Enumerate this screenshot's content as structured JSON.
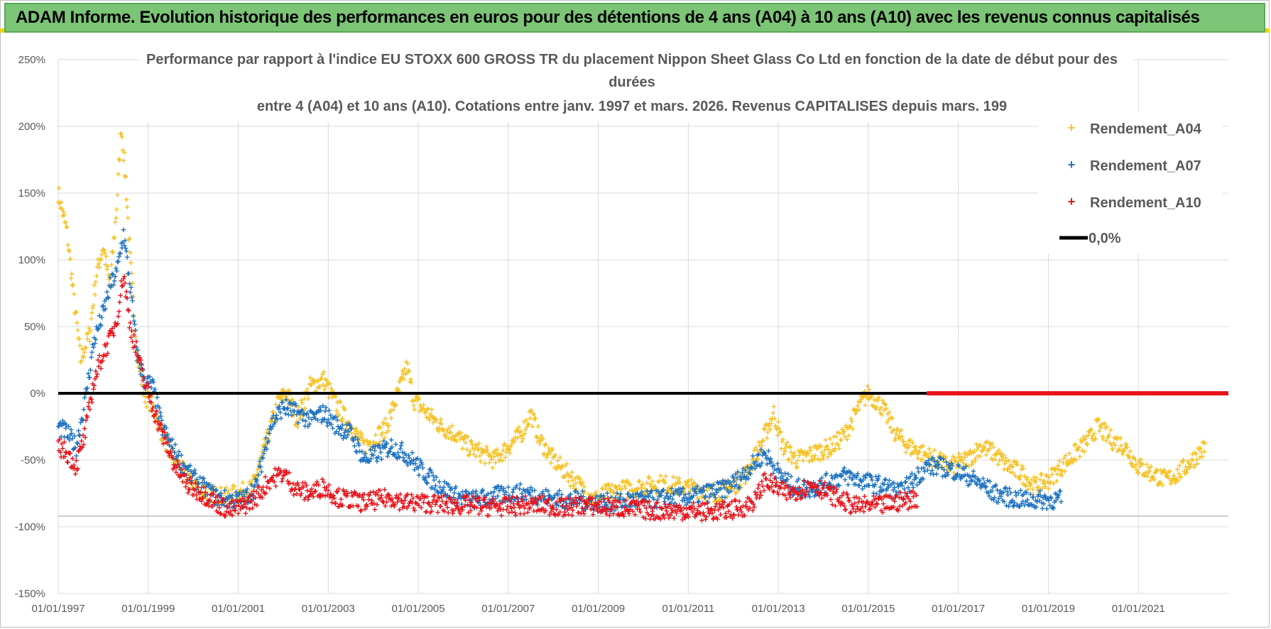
{
  "header": {
    "title": "ADAM Informe. Evolution historique des performances en euros pour des détentions de 4 ans (A04) à 10 ans (A10) avec les revenus connus capitalisés"
  },
  "colors": {
    "a04": "#f5c227",
    "a07": "#1f73c2",
    "a10": "#e8141c",
    "zero": "#000000",
    "banner": "#7cc576"
  },
  "chart_data": {
    "type": "scatter",
    "title_lines": [
      "Performance par rapport à l'indice EU STOXX 600 GROSS TR  du placement Nippon Sheet Glass Co Ltd en fonction de la date de début pour des",
      "durées",
      "entre 4 (A04) et 10 ans (A10).  Cotations entre janv. 1997 et mars. 2026.  Revenus CAPITALISES depuis mars. 199"
    ],
    "xlim": [
      1997.0,
      2023.0
    ],
    "ylim": [
      -150,
      250
    ],
    "yticks": [
      250,
      200,
      150,
      100,
      50,
      0,
      -50,
      -100,
      -150
    ],
    "ytick_labels": [
      "250%",
      "200%",
      "150%",
      "100%",
      "50%",
      "0%",
      "-50%",
      "-100%",
      "-150%"
    ],
    "xticks": [
      1997,
      1999,
      2001,
      2003,
      2005,
      2007,
      2009,
      2011,
      2013,
      2015,
      2017,
      2019,
      2021
    ],
    "xtick_labels": [
      "01/01/1997",
      "01/01/1999",
      "01/01/2001",
      "01/01/2003",
      "01/01/2005",
      "01/01/2007",
      "01/01/2009",
      "01/01/2011",
      "01/01/2013",
      "01/01/2015",
      "01/01/2017",
      "01/01/2019",
      "01/01/2021"
    ],
    "legend": [
      "Rendement_A04",
      "Rendement_A07",
      "Rendement_A10",
      "0,0%"
    ],
    "series": [
      {
        "name": "Rendement_A04",
        "color": "#f5c227",
        "points": [
          [
            1997.0,
            150
          ],
          [
            1997.2,
            120
          ],
          [
            1997.35,
            70
          ],
          [
            1997.5,
            25
          ],
          [
            1997.7,
            45
          ],
          [
            1997.85,
            90
          ],
          [
            1998.0,
            110
          ],
          [
            1998.15,
            80
          ],
          [
            1998.3,
            140
          ],
          [
            1998.4,
            200
          ],
          [
            1998.5,
            160
          ],
          [
            1998.6,
            100
          ],
          [
            1998.75,
            30
          ],
          [
            1998.9,
            0
          ],
          [
            1999.1,
            -10
          ],
          [
            1999.3,
            -30
          ],
          [
            1999.5,
            -45
          ],
          [
            1999.8,
            -60
          ],
          [
            2000.1,
            -70
          ],
          [
            2000.4,
            -75
          ],
          [
            2000.7,
            -78
          ],
          [
            2001.0,
            -75
          ],
          [
            2001.3,
            -72
          ],
          [
            2001.6,
            -40
          ],
          [
            2001.9,
            -5
          ],
          [
            2002.1,
            0
          ],
          [
            2002.3,
            -20
          ],
          [
            2002.6,
            5
          ],
          [
            2002.9,
            10
          ],
          [
            2003.2,
            -10
          ],
          [
            2003.5,
            -25
          ],
          [
            2003.8,
            -40
          ],
          [
            2004.0,
            -35
          ],
          [
            2004.3,
            -25
          ],
          [
            2004.55,
            0
          ],
          [
            2004.75,
            20
          ],
          [
            2004.9,
            -5
          ],
          [
            2005.2,
            -15
          ],
          [
            2005.5,
            -25
          ],
          [
            2005.8,
            -30
          ],
          [
            2006.1,
            -40
          ],
          [
            2006.4,
            -45
          ],
          [
            2006.7,
            -50
          ],
          [
            2007.0,
            -40
          ],
          [
            2007.3,
            -30
          ],
          [
            2007.5,
            -15
          ],
          [
            2007.7,
            -35
          ],
          [
            2008.0,
            -50
          ],
          [
            2008.3,
            -60
          ],
          [
            2008.6,
            -70
          ],
          [
            2008.9,
            -80
          ],
          [
            2009.2,
            -75
          ],
          [
            2009.6,
            -72
          ],
          [
            2010.0,
            -70
          ],
          [
            2010.4,
            -68
          ],
          [
            2010.8,
            -70
          ],
          [
            2011.2,
            -72
          ],
          [
            2011.6,
            -75
          ],
          [
            2012.0,
            -70
          ],
          [
            2012.3,
            -60
          ],
          [
            2012.6,
            -40
          ],
          [
            2012.9,
            -15
          ],
          [
            2013.1,
            -40
          ],
          [
            2013.4,
            -50
          ],
          [
            2013.8,
            -45
          ],
          [
            2014.2,
            -40
          ],
          [
            2014.5,
            -30
          ],
          [
            2014.8,
            -10
          ],
          [
            2015.0,
            0
          ],
          [
            2015.3,
            -10
          ],
          [
            2015.6,
            -30
          ],
          [
            2015.9,
            -40
          ],
          [
            2016.2,
            -45
          ],
          [
            2016.5,
            -50
          ],
          [
            2016.8,
            -55
          ],
          [
            2017.2,
            -50
          ],
          [
            2017.5,
            -40
          ],
          [
            2017.8,
            -45
          ],
          [
            2018.1,
            -55
          ],
          [
            2018.4,
            -60
          ],
          [
            2018.7,
            -70
          ],
          [
            2019.0,
            -65
          ],
          [
            2019.3,
            -55
          ],
          [
            2019.6,
            -45
          ],
          [
            2019.9,
            -35
          ],
          [
            2020.1,
            -25
          ],
          [
            2020.4,
            -35
          ],
          [
            2020.7,
            -40
          ],
          [
            2021.0,
            -55
          ],
          [
            2021.3,
            -60
          ],
          [
            2021.6,
            -65
          ],
          [
            2021.9,
            -60
          ],
          [
            2022.2,
            -50
          ],
          [
            2022.5,
            -40
          ]
        ]
      },
      {
        "name": "Rendement_A07",
        "color": "#1f73c2",
        "points": [
          [
            1997.0,
            -25
          ],
          [
            1997.2,
            -30
          ],
          [
            1997.4,
            -40
          ],
          [
            1997.6,
            -5
          ],
          [
            1997.8,
            40
          ],
          [
            1998.0,
            60
          ],
          [
            1998.15,
            80
          ],
          [
            1998.3,
            90
          ],
          [
            1998.45,
            120
          ],
          [
            1998.6,
            80
          ],
          [
            1998.75,
            30
          ],
          [
            1998.9,
            10
          ],
          [
            1999.1,
            5
          ],
          [
            1999.3,
            -25
          ],
          [
            1999.6,
            -45
          ],
          [
            1999.9,
            -60
          ],
          [
            2000.2,
            -70
          ],
          [
            2000.5,
            -78
          ],
          [
            2000.8,
            -80
          ],
          [
            2001.1,
            -80
          ],
          [
            2001.4,
            -70
          ],
          [
            2001.7,
            -25
          ],
          [
            2002.0,
            -10
          ],
          [
            2002.3,
            -15
          ],
          [
            2002.6,
            -20
          ],
          [
            2002.9,
            -15
          ],
          [
            2003.2,
            -25
          ],
          [
            2003.5,
            -30
          ],
          [
            2003.8,
            -50
          ],
          [
            2004.1,
            -45
          ],
          [
            2004.4,
            -40
          ],
          [
            2004.7,
            -45
          ],
          [
            2005.0,
            -55
          ],
          [
            2005.3,
            -65
          ],
          [
            2005.6,
            -72
          ],
          [
            2005.9,
            -78
          ],
          [
            2006.2,
            -80
          ],
          [
            2006.6,
            -78
          ],
          [
            2007.0,
            -75
          ],
          [
            2007.4,
            -75
          ],
          [
            2007.8,
            -78
          ],
          [
            2008.2,
            -80
          ],
          [
            2008.6,
            -80
          ],
          [
            2009.0,
            -82
          ],
          [
            2009.4,
            -82
          ],
          [
            2009.8,
            -80
          ],
          [
            2010.2,
            -80
          ],
          [
            2010.6,
            -78
          ],
          [
            2011.0,
            -78
          ],
          [
            2011.4,
            -75
          ],
          [
            2011.8,
            -72
          ],
          [
            2012.1,
            -65
          ],
          [
            2012.4,
            -55
          ],
          [
            2012.7,
            -45
          ],
          [
            2013.0,
            -60
          ],
          [
            2013.3,
            -70
          ],
          [
            2013.6,
            -72
          ],
          [
            2013.9,
            -70
          ],
          [
            2014.2,
            -65
          ],
          [
            2014.5,
            -62
          ],
          [
            2014.8,
            -65
          ],
          [
            2015.1,
            -68
          ],
          [
            2015.4,
            -70
          ],
          [
            2015.7,
            -75
          ],
          [
            2016.0,
            -65
          ],
          [
            2016.3,
            -55
          ],
          [
            2016.6,
            -55
          ],
          [
            2016.9,
            -58
          ],
          [
            2017.2,
            -62
          ],
          [
            2017.5,
            -68
          ],
          [
            2017.8,
            -75
          ],
          [
            2018.1,
            -78
          ],
          [
            2018.4,
            -80
          ],
          [
            2018.7,
            -80
          ],
          [
            2019.0,
            -80
          ],
          [
            2019.3,
            -80
          ]
        ]
      },
      {
        "name": "Rendement_A10",
        "color": "#e8141c",
        "points": [
          [
            1997.0,
            -40
          ],
          [
            1997.2,
            -45
          ],
          [
            1997.4,
            -55
          ],
          [
            1997.6,
            -30
          ],
          [
            1997.8,
            10
          ],
          [
            1998.0,
            30
          ],
          [
            1998.15,
            40
          ],
          [
            1998.3,
            55
          ],
          [
            1998.45,
            90
          ],
          [
            1998.6,
            50
          ],
          [
            1998.75,
            30
          ],
          [
            1998.9,
            10
          ],
          [
            1999.1,
            -10
          ],
          [
            1999.3,
            -30
          ],
          [
            1999.6,
            -55
          ],
          [
            1999.9,
            -70
          ],
          [
            2000.2,
            -75
          ],
          [
            2000.5,
            -82
          ],
          [
            2000.8,
            -88
          ],
          [
            2001.1,
            -85
          ],
          [
            2001.4,
            -78
          ],
          [
            2001.7,
            -65
          ],
          [
            2002.0,
            -60
          ],
          [
            2002.3,
            -72
          ],
          [
            2002.6,
            -75
          ],
          [
            2002.9,
            -70
          ],
          [
            2003.2,
            -78
          ],
          [
            2003.5,
            -80
          ],
          [
            2003.8,
            -82
          ],
          [
            2004.1,
            -80
          ],
          [
            2004.4,
            -78
          ],
          [
            2004.7,
            -82
          ],
          [
            2005.0,
            -82
          ],
          [
            2005.4,
            -83
          ],
          [
            2005.8,
            -84
          ],
          [
            2006.2,
            -84
          ],
          [
            2006.6,
            -85
          ],
          [
            2007.0,
            -85
          ],
          [
            2007.4,
            -84
          ],
          [
            2007.8,
            -84
          ],
          [
            2008.2,
            -86
          ],
          [
            2008.6,
            -84
          ],
          [
            2009.0,
            -85
          ],
          [
            2009.4,
            -86
          ],
          [
            2009.8,
            -87
          ],
          [
            2010.2,
            -88
          ],
          [
            2010.6,
            -88
          ],
          [
            2011.0,
            -88
          ],
          [
            2011.4,
            -89
          ],
          [
            2011.8,
            -88
          ],
          [
            2012.2,
            -86
          ],
          [
            2012.5,
            -80
          ],
          [
            2012.7,
            -65
          ],
          [
            2012.9,
            -70
          ],
          [
            2013.2,
            -75
          ],
          [
            2013.5,
            -72
          ],
          [
            2013.8,
            -68
          ],
          [
            2014.1,
            -75
          ],
          [
            2014.4,
            -80
          ],
          [
            2014.7,
            -85
          ],
          [
            2015.0,
            -84
          ],
          [
            2015.3,
            -84
          ],
          [
            2015.6,
            -82
          ],
          [
            2015.9,
            -80
          ],
          [
            2016.1,
            -78
          ]
        ]
      },
      {
        "name": "zero_red_segment",
        "color": "#e8141c",
        "points": [
          [
            2016.3,
            0
          ],
          [
            2023.0,
            0
          ]
        ]
      }
    ],
    "reference_line": {
      "name": "0,0%",
      "y": 0,
      "x_range": [
        1997.0,
        2016.3
      ]
    }
  }
}
